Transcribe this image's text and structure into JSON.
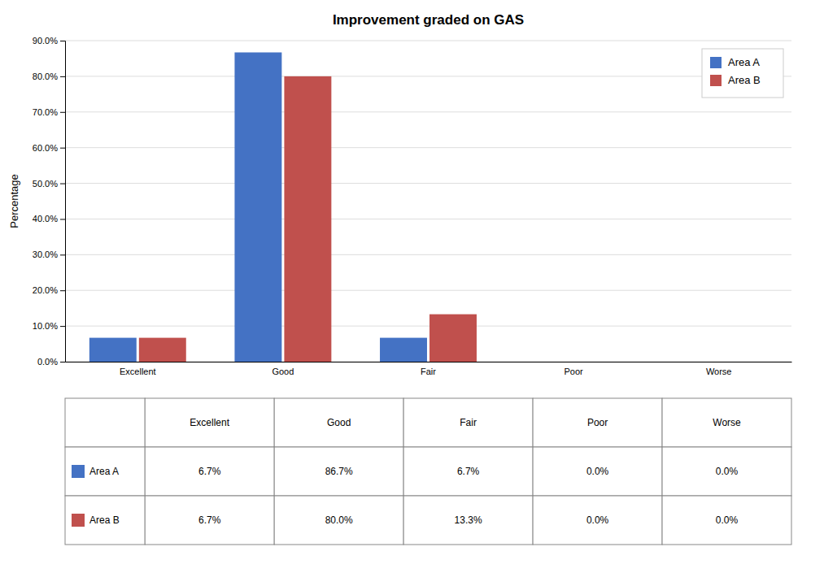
{
  "chart_data": {
    "type": "bar",
    "title": "Improvement graded on GAS",
    "categories": [
      "Excellent",
      "Good",
      "Fair",
      "Poor",
      "Worse"
    ],
    "series": [
      {
        "name": "Area A",
        "color": "#4472C4",
        "values": [
          6.7,
          86.7,
          6.7,
          0.0,
          0.0
        ],
        "value_labels": [
          "6.7%",
          "86.7%",
          "6.7%",
          "0.0%",
          "0.0%"
        ]
      },
      {
        "name": "Area B",
        "color": "#C0504D",
        "values": [
          6.7,
          80.0,
          13.3,
          0.0,
          0.0
        ],
        "value_labels": [
          "6.7%",
          "80.0%",
          "13.3%",
          "0.0%",
          "0.0%"
        ]
      }
    ],
    "ylabel": "Percentage",
    "ylim": [
      0,
      90
    ],
    "yticks": [
      {
        "value": 0,
        "label": "0.0%"
      },
      {
        "value": 10,
        "label": "10.0%"
      },
      {
        "value": 20,
        "label": "20.0%"
      },
      {
        "value": 30,
        "label": "30.0%"
      },
      {
        "value": 40,
        "label": "40.0%"
      },
      {
        "value": 50,
        "label": "50.0%"
      },
      {
        "value": 60,
        "label": "60.0%"
      },
      {
        "value": 70,
        "label": "70.0%"
      },
      {
        "value": 80,
        "label": "80.0%"
      },
      {
        "value": 90,
        "label": "90.0%"
      }
    ],
    "grid": true,
    "legend": "upper right"
  }
}
